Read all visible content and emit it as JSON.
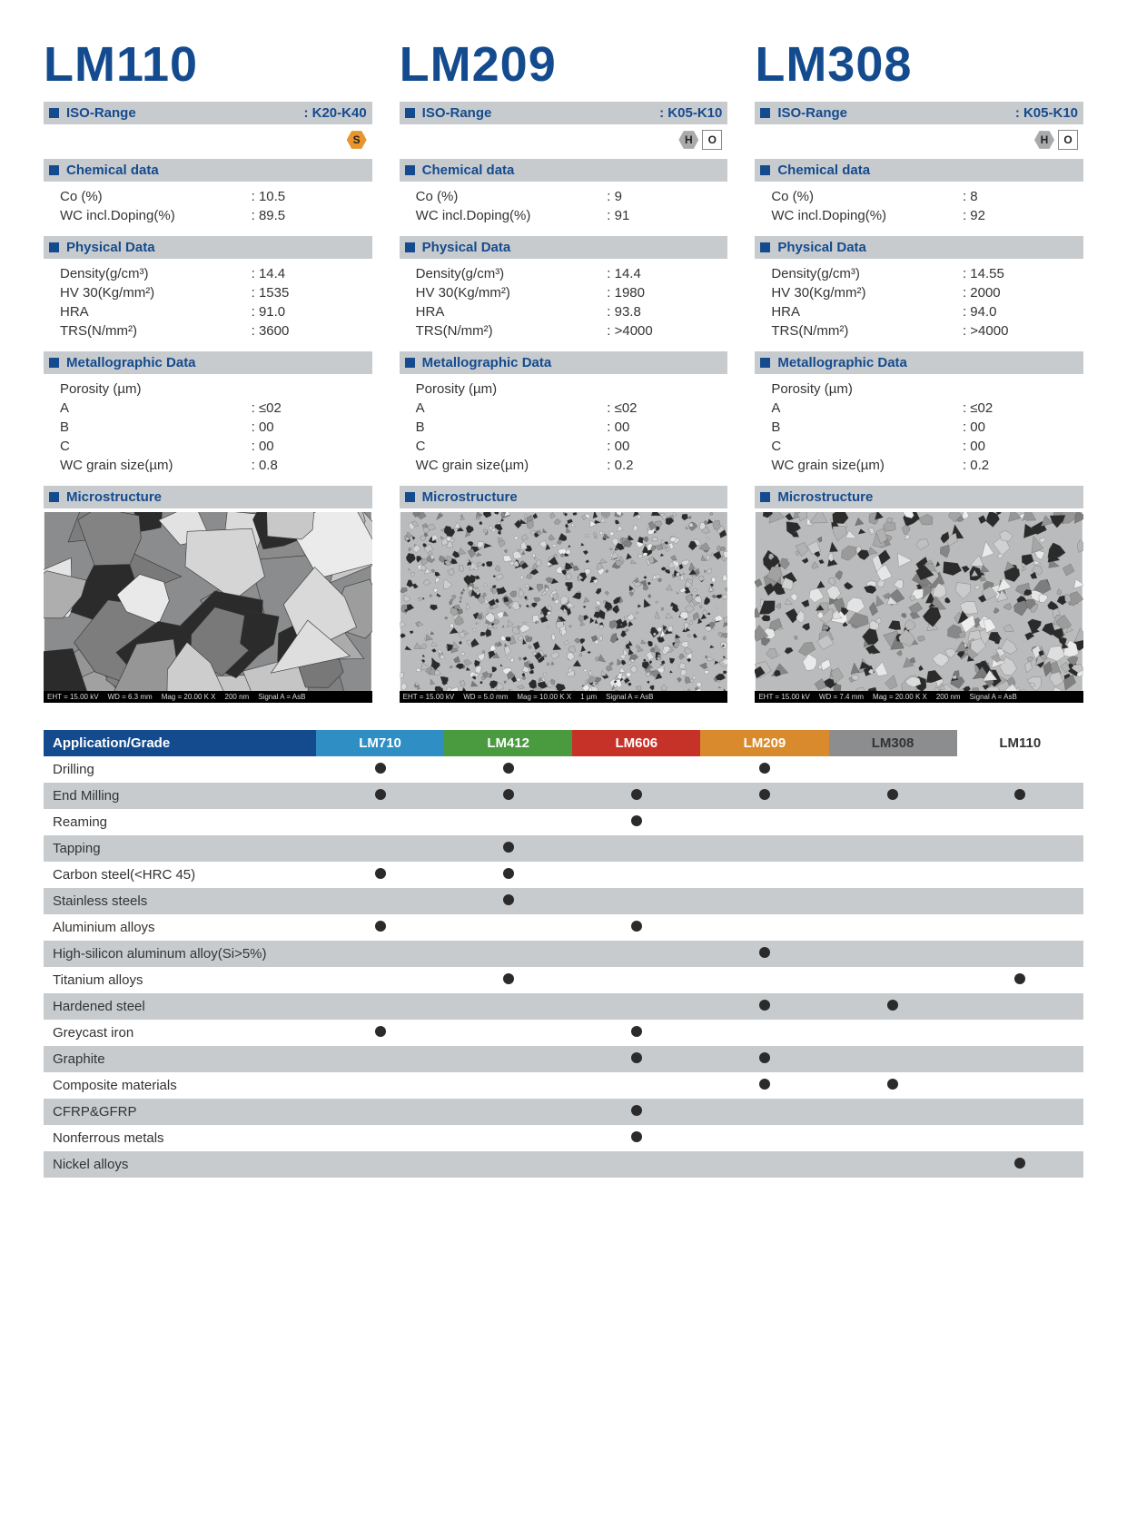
{
  "colors": {
    "brand_blue": "#144b8e",
    "header_grey": "#c8cbce",
    "text": "#333333",
    "table_header_bg": "#144b8e",
    "dot": "#2b2b2b",
    "grade_colors": {
      "LM710": "#2f8fc4",
      "LM412": "#4a9a3f",
      "LM606": "#c73228",
      "LM209": "#d88a2c",
      "LM308": "#8b8d8f",
      "LM110": "#ffffff"
    },
    "grade_text": {
      "LM710": "#ffffff",
      "LM412": "#ffffff",
      "LM606": "#ffffff",
      "LM209": "#ffffff",
      "LM308": "#333333",
      "LM110": "#333333"
    }
  },
  "section_labels": {
    "iso": "ISO-Range",
    "chemical": "Chemical data",
    "physical": "Physical Data",
    "metallographic": "Metallographic Data",
    "microstructure": "Microstructure",
    "app_grade": "Application/Grade"
  },
  "grades": [
    {
      "name": "LM110",
      "iso_range": "K20-K40",
      "badges": [
        {
          "type": "hex-orange",
          "text": "S"
        }
      ],
      "chemical": [
        {
          "k": "Co (%)",
          "v": "10.5"
        },
        {
          "k": "WC incl.Doping(%)",
          "v": "89.5"
        }
      ],
      "physical": [
        {
          "k": "Density(g/cm³)",
          "v": "14.4"
        },
        {
          "k": "HV 30(Kg/mm²)",
          "v": "1535"
        },
        {
          "k": "HRA",
          "v": "91.0"
        },
        {
          "k": "TRS(N/mm²)",
          "v": "3600"
        }
      ],
      "metallographic_intro": "Porosity (µm)",
      "metallographic": [
        {
          "k": "A",
          "v": "≤02"
        },
        {
          "k": "B",
          "v": "00"
        },
        {
          "k": "C",
          "v": "00"
        },
        {
          "k": "WC grain size(µm)",
          "v": "0.8"
        }
      ],
      "micro_caption": [
        "EHT = 15.00 kV",
        "WD = 6.3 mm",
        "Mag = 20.00 K X",
        "200 nm",
        "Signal A = AsB"
      ],
      "micro_style": {
        "scale": 1.0,
        "seed": 1
      }
    },
    {
      "name": "LM209",
      "iso_range": "K05-K10",
      "badges": [
        {
          "type": "hex-grey",
          "text": "H"
        },
        {
          "type": "sq-white",
          "text": "O"
        }
      ],
      "chemical": [
        {
          "k": "Co (%)",
          "v": "9"
        },
        {
          "k": "WC incl.Doping(%)",
          "v": "91"
        }
      ],
      "physical": [
        {
          "k": "Density(g/cm³)",
          "v": "14.4"
        },
        {
          "k": "HV 30(Kg/mm²)",
          "v": "1980"
        },
        {
          "k": "HRA",
          "v": "93.8"
        },
        {
          "k": "TRS(N/mm²)",
          "v": ">4000"
        }
      ],
      "metallographic_intro": "Porosity (µm)",
      "metallographic": [
        {
          "k": "A",
          "v": "≤02"
        },
        {
          "k": "B",
          "v": "00"
        },
        {
          "k": "C",
          "v": "00"
        },
        {
          "k": "WC grain size(µm)",
          "v": "0.2"
        }
      ],
      "micro_caption": [
        "EHT = 15.00 kV",
        "WD = 5.0 mm",
        "Mag = 10.00 K X",
        "1 µm",
        "Signal A = AsB"
      ],
      "micro_style": {
        "scale": 0.25,
        "seed": 2
      }
    },
    {
      "name": "LM308",
      "iso_range": "K05-K10",
      "badges": [
        {
          "type": "hex-grey",
          "text": "H"
        },
        {
          "type": "sq-white",
          "text": "O"
        }
      ],
      "chemical": [
        {
          "k": "Co (%)",
          "v": "8"
        },
        {
          "k": "WC incl.Doping(%)",
          "v": "92"
        }
      ],
      "physical": [
        {
          "k": "Density(g/cm³)",
          "v": "14.55"
        },
        {
          "k": "HV 30(Kg/mm²)",
          "v": "2000"
        },
        {
          "k": "HRA",
          "v": "94.0"
        },
        {
          "k": "TRS(N/mm²)",
          "v": ">4000"
        }
      ],
      "metallographic_intro": "Porosity (µm)",
      "metallographic": [
        {
          "k": "A",
          "v": "≤02"
        },
        {
          "k": "B",
          "v": "00"
        },
        {
          "k": "C",
          "v": "00"
        },
        {
          "k": "WC grain size(µm)",
          "v": "0.2"
        }
      ],
      "micro_caption": [
        "EHT = 15.00 kV",
        "WD = 7.4 mm",
        "Mag = 20.00 K X",
        "200 nm",
        "Signal A = AsB"
      ],
      "micro_style": {
        "scale": 0.35,
        "seed": 3
      }
    }
  ],
  "application_table": {
    "columns": [
      "LM710",
      "LM412",
      "LM606",
      "LM209",
      "LM308",
      "LM110"
    ],
    "rows": [
      {
        "label": "Drilling",
        "dots": [
          1,
          1,
          0,
          1,
          0,
          0
        ]
      },
      {
        "label": "End Milling",
        "dots": [
          1,
          1,
          1,
          1,
          1,
          1
        ]
      },
      {
        "label": "Reaming",
        "dots": [
          0,
          0,
          1,
          0,
          0,
          0
        ]
      },
      {
        "label": "Tapping",
        "dots": [
          0,
          1,
          0,
          0,
          0,
          0
        ]
      },
      {
        "label": "Carbon steel(<HRC 45)",
        "dots": [
          1,
          1,
          0,
          0,
          0,
          0
        ]
      },
      {
        "label": "Stainless steels",
        "dots": [
          0,
          1,
          0,
          0,
          0,
          0
        ]
      },
      {
        "label": "Aluminium alloys",
        "dots": [
          1,
          0,
          1,
          0,
          0,
          0
        ]
      },
      {
        "label": "High-silicon aluminum alloy(Si>5%)",
        "dots": [
          0,
          0,
          0,
          1,
          0,
          0
        ]
      },
      {
        "label": "Titanium alloys",
        "dots": [
          0,
          1,
          0,
          0,
          0,
          1
        ]
      },
      {
        "label": "Hardened steel",
        "dots": [
          0,
          0,
          0,
          1,
          1,
          0
        ]
      },
      {
        "label": "Greycast iron",
        "dots": [
          1,
          0,
          1,
          0,
          0,
          0
        ]
      },
      {
        "label": "Graphite",
        "dots": [
          0,
          0,
          1,
          1,
          0,
          0
        ]
      },
      {
        "label": "Composite materials",
        "dots": [
          0,
          0,
          0,
          1,
          1,
          0
        ]
      },
      {
        "label": "CFRP&GFRP",
        "dots": [
          0,
          0,
          1,
          0,
          0,
          0
        ]
      },
      {
        "label": "Nonferrous metals",
        "dots": [
          0,
          0,
          1,
          0,
          0,
          0
        ]
      },
      {
        "label": "Nickel alloys",
        "dots": [
          0,
          0,
          0,
          0,
          0,
          1
        ]
      }
    ]
  }
}
